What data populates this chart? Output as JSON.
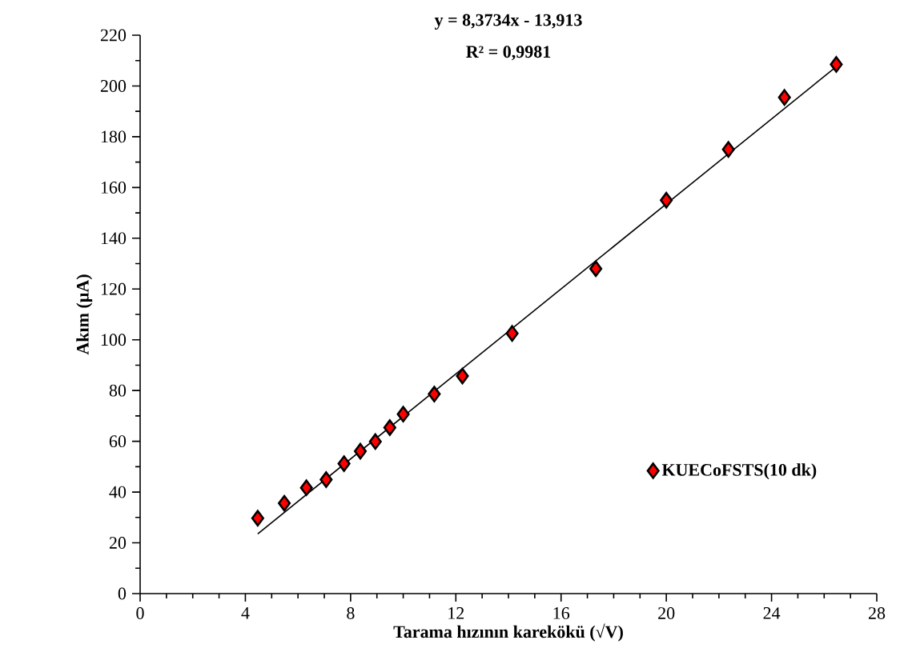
{
  "chart_data": {
    "type": "scatter",
    "xlabel": "Tarama hızının karekökü (√V)",
    "ylabel": "Akım (µA)",
    "annotations": [
      "y = 8,3734x - 13,913",
      "R² = 0,9981"
    ],
    "series": [
      {
        "name": "KUECoFSTS(10 dk)",
        "color": "#ff0000",
        "marker": "diamond",
        "x": [
          4.47,
          5.48,
          6.32,
          7.07,
          7.75,
          8.37,
          8.94,
          9.49,
          10.0,
          11.18,
          12.25,
          14.14,
          17.32,
          20.0,
          22.36,
          24.49,
          26.46
        ],
        "values": [
          29.7,
          35.6,
          41.7,
          44.9,
          51.2,
          56.1,
          59.9,
          65.4,
          70.7,
          78.6,
          85.7,
          102.5,
          128,
          155,
          175,
          195.5,
          208.5
        ]
      },
      {
        "type": "line",
        "color": "#000000",
        "line_style": "solid",
        "marker": "none",
        "x": [
          4.47,
          26.46
        ],
        "values": [
          23.5,
          207.6
        ]
      }
    ],
    "legend": "right",
    "grid": false,
    "xlim": [
      0,
      28
    ],
    "xticks": [
      0,
      4,
      8,
      12,
      16,
      20,
      24,
      28
    ],
    "ylim": [
      0,
      220
    ],
    "yticks": [
      0,
      20,
      40,
      60,
      80,
      100,
      120,
      140,
      160,
      180,
      200,
      220
    ]
  }
}
